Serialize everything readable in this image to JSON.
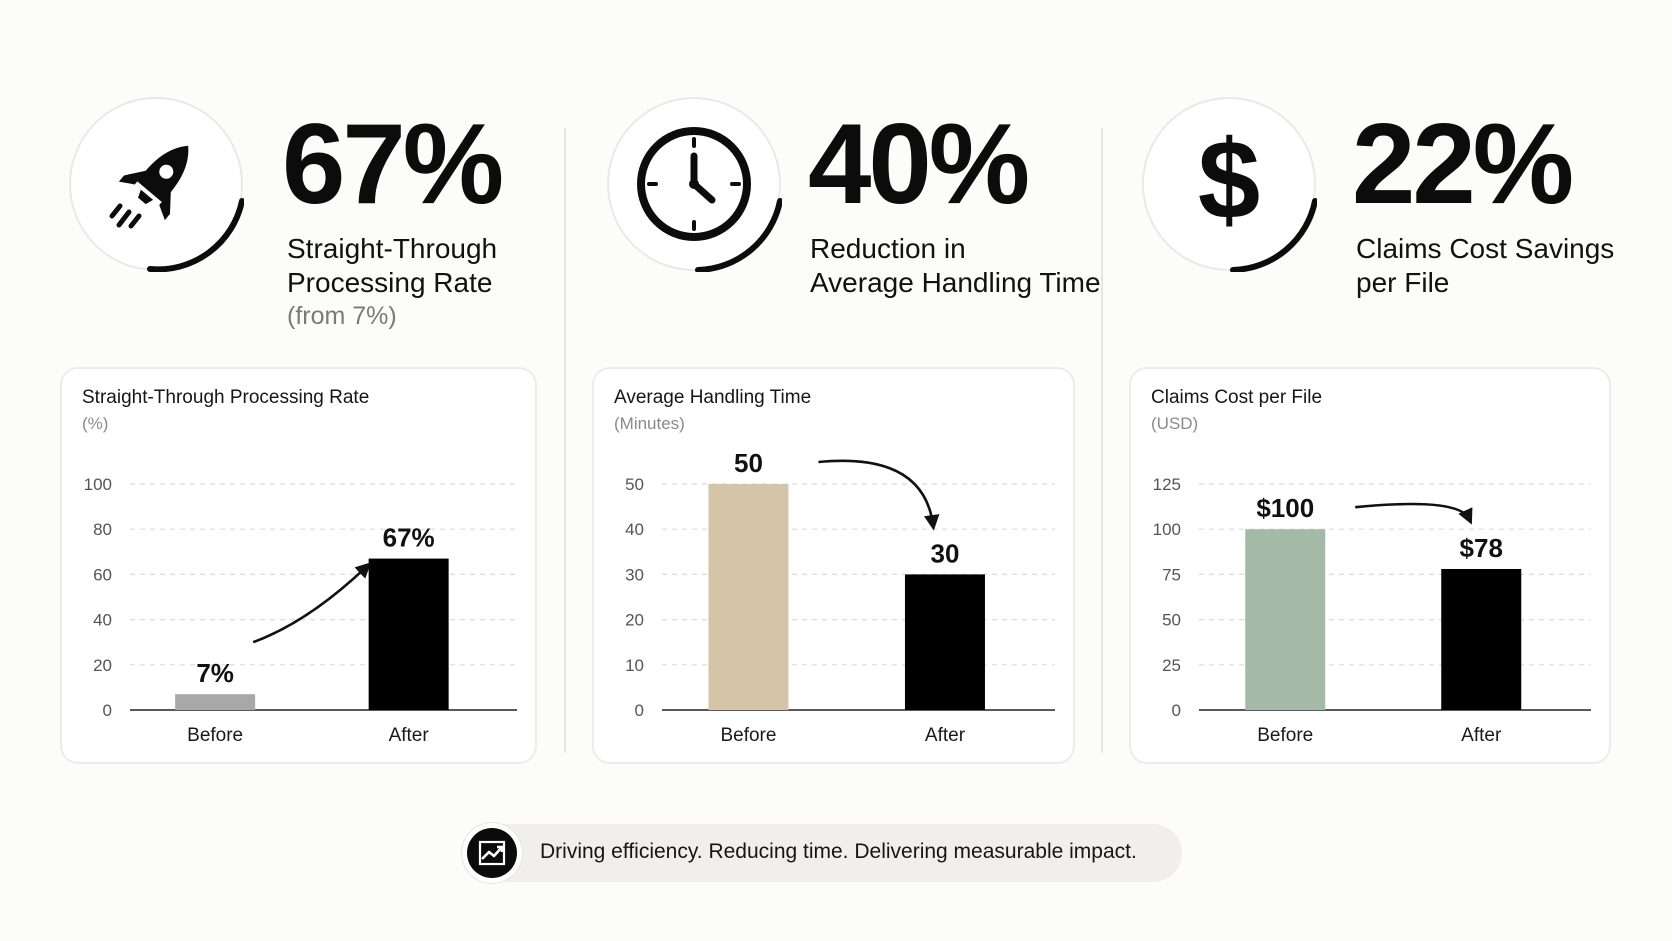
{
  "kpis": [
    {
      "value": "67%",
      "label_line1": "Straight-Through",
      "label_line2": "Processing Rate",
      "sublabel": "(from 7%)",
      "icon": "rocket-icon"
    },
    {
      "value": "40%",
      "label_line1": "Reduction in",
      "label_line2": "Average Handling Time",
      "sublabel": "",
      "icon": "clock-icon"
    },
    {
      "value": "22%",
      "label_line1": "Claims Cost Savings",
      "label_line2": "per File",
      "sublabel": "",
      "icon": "dollar-icon"
    }
  ],
  "chart_data": [
    {
      "type": "bar",
      "title": "Straight-Through Processing Rate",
      "unit": "(%)",
      "categories": [
        "Before",
        "After"
      ],
      "values": [
        7,
        67
      ],
      "value_labels": [
        "7%",
        "67%"
      ],
      "yticks": [
        "0",
        "20",
        "40",
        "60",
        "80",
        "100"
      ],
      "ylim": [
        0,
        100
      ],
      "bar_colors": [
        "#a8a8a8",
        "#000000"
      ],
      "arrow": "up",
      "grid": true
    },
    {
      "type": "bar",
      "title": "Average Handling Time",
      "unit": "(Minutes)",
      "categories": [
        "Before",
        "After"
      ],
      "values": [
        50,
        30
      ],
      "value_labels": [
        "50",
        "30"
      ],
      "yticks": [
        "0",
        "10",
        "20",
        "30",
        "40",
        "50"
      ],
      "ylim": [
        0,
        50
      ],
      "bar_colors": [
        "#d4c4a8",
        "#000000"
      ],
      "arrow": "down",
      "grid": true
    },
    {
      "type": "bar",
      "title": "Claims Cost per File",
      "unit": "(USD)",
      "categories": [
        "Before",
        "After"
      ],
      "values": [
        100,
        78
      ],
      "value_labels": [
        "$100",
        "$78"
      ],
      "yticks": [
        "0",
        "25",
        "50",
        "75",
        "100",
        "125"
      ],
      "ylim": [
        0,
        125
      ],
      "bar_colors": [
        "#a4baa6",
        "#000000"
      ],
      "arrow": "down",
      "grid": true
    }
  ],
  "tagline": {
    "text": "Driving efficiency. Reducing time. Delivering measurable impact.",
    "icon": "trend-up-icon"
  },
  "colors": {
    "text": "#111111",
    "grid": "#dddddd",
    "muted": "#8a8a8a"
  }
}
